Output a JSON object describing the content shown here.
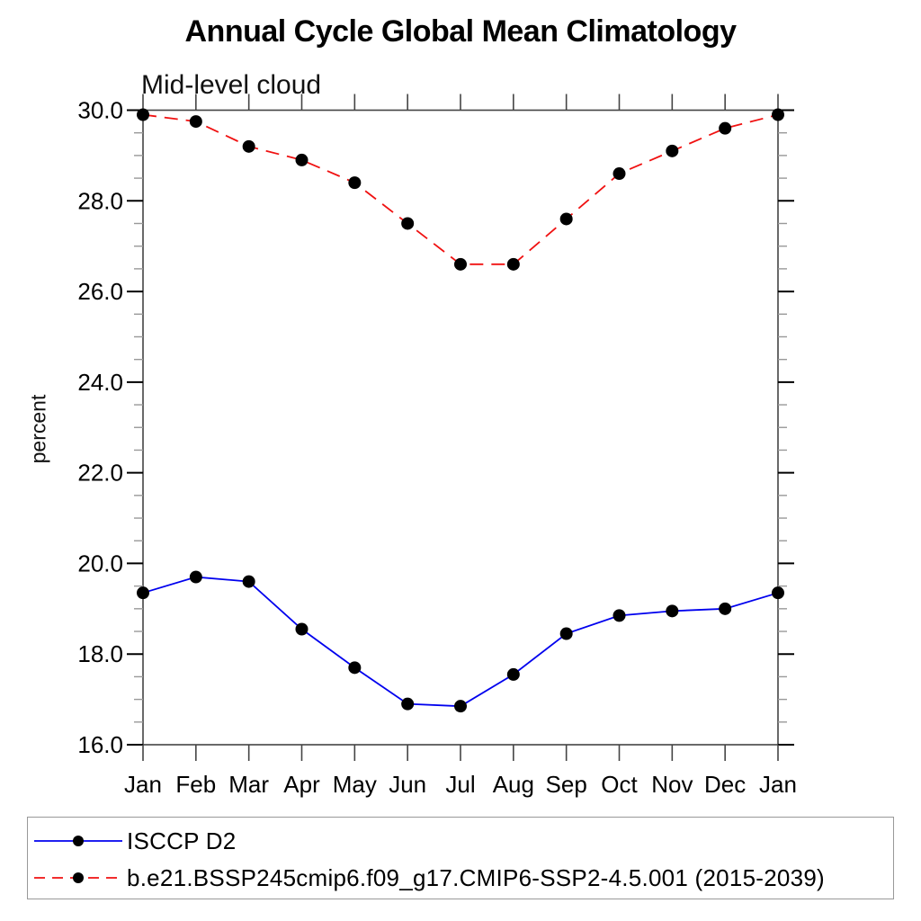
{
  "chart_data": {
    "type": "line",
    "title": "Annual Cycle Global Mean Climatology",
    "subtitle": "Mid-level cloud",
    "ylabel": "percent",
    "xlabel": "",
    "categories": [
      "Jan",
      "Feb",
      "Mar",
      "Apr",
      "May",
      "Jun",
      "Jul",
      "Aug",
      "Sep",
      "Oct",
      "Nov",
      "Dec",
      "Jan"
    ],
    "ylim": [
      16.0,
      30.0
    ],
    "ytick_major_interval": 2.0,
    "ytick_minor_interval": 0.5,
    "ytick_labels": [
      "16.0",
      "18.0",
      "20.0",
      "22.0",
      "24.0",
      "26.0",
      "28.0",
      "30.0"
    ],
    "grid": false,
    "legend_position": "bottom box",
    "marker": {
      "shape": "filled-circle",
      "color": "#000000"
    },
    "series": [
      {
        "name": "ISCCP D2",
        "color": "#0000ee",
        "line_style": "solid",
        "values": [
          19.35,
          19.7,
          19.6,
          18.55,
          17.7,
          16.9,
          16.85,
          17.55,
          18.45,
          18.85,
          18.95,
          19.0,
          19.35
        ]
      },
      {
        "name": "b.e21.BSSP245cmip6.f09_g17.CMIP6-SSP2-4.5.001 (2015-2039)",
        "color": "#f01111",
        "line_style": "dashed",
        "values": [
          29.9,
          29.75,
          29.2,
          28.9,
          28.4,
          27.5,
          26.6,
          26.6,
          27.6,
          28.6,
          29.1,
          29.6,
          29.9
        ]
      }
    ]
  }
}
